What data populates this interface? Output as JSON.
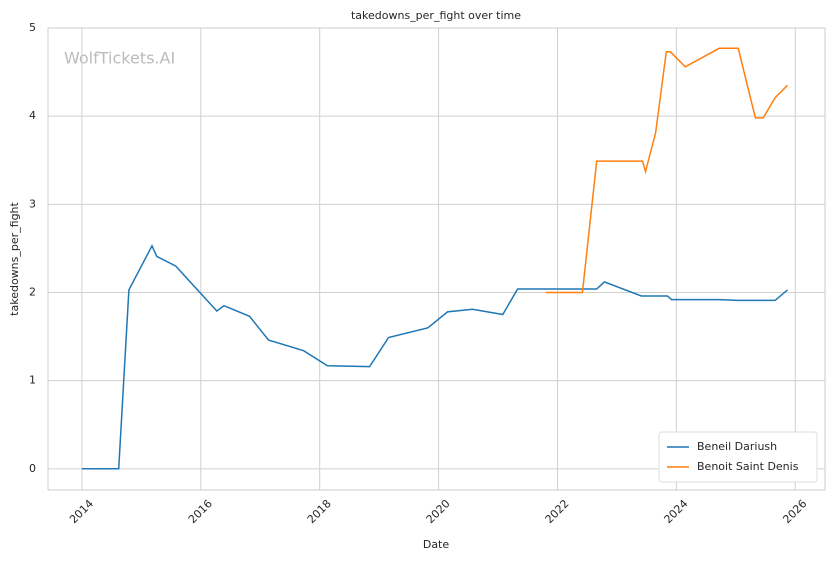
{
  "chart_data": {
    "type": "line",
    "title": "takedowns_per_fight over time",
    "watermark": "WolfTickets.AI",
    "x_label": "Date",
    "y_label": "takedowns_per_fight",
    "xlim": [
      2013.43,
      2026.5
    ],
    "xticks": [
      2014,
      2016,
      2018,
      2020,
      2022,
      2024,
      2026
    ],
    "ylim": [
      -0.24,
      5
    ],
    "yticks": [
      0,
      1,
      2,
      3,
      4,
      5
    ],
    "grid": true,
    "legend": "lower right",
    "series": [
      {
        "name": "Beneil Dariush",
        "color": "#1f77b4",
        "x": [
          2014.0,
          2014.62,
          2014.79,
          2015.18,
          2015.26,
          2015.58,
          2016.27,
          2016.39,
          2016.82,
          2017.14,
          2017.73,
          2018.13,
          2018.84,
          2019.16,
          2019.82,
          2020.15,
          2020.57,
          2021.08,
          2021.33,
          2022.66,
          2022.79,
          2023.41,
          2023.85,
          2023.92,
          2024.72,
          2025.03,
          2025.66,
          2025.87
        ],
        "values": [
          0,
          0,
          2.03,
          2.53,
          2.41,
          2.3,
          1.79,
          1.85,
          1.73,
          1.46,
          1.34,
          1.17,
          1.16,
          1.49,
          1.6,
          1.78,
          1.81,
          1.75,
          2.04,
          2.04,
          2.12,
          1.96,
          1.96,
          1.92,
          1.92,
          1.91,
          1.91,
          2.03
        ]
      },
      {
        "name": "Benoit Saint Denis",
        "color": "#ff7f0e",
        "x": [
          2021.8,
          2022.42,
          2022.66,
          2023.43,
          2023.48,
          2023.65,
          2023.83,
          2023.9,
          2024.15,
          2024.72,
          2025.04,
          2025.33,
          2025.46,
          2025.66,
          2025.87
        ],
        "values": [
          2.0,
          2.0,
          3.49,
          3.49,
          3.37,
          3.81,
          4.73,
          4.73,
          4.56,
          4.77,
          4.77,
          3.98,
          3.98,
          4.21,
          4.35
        ]
      }
    ]
  }
}
